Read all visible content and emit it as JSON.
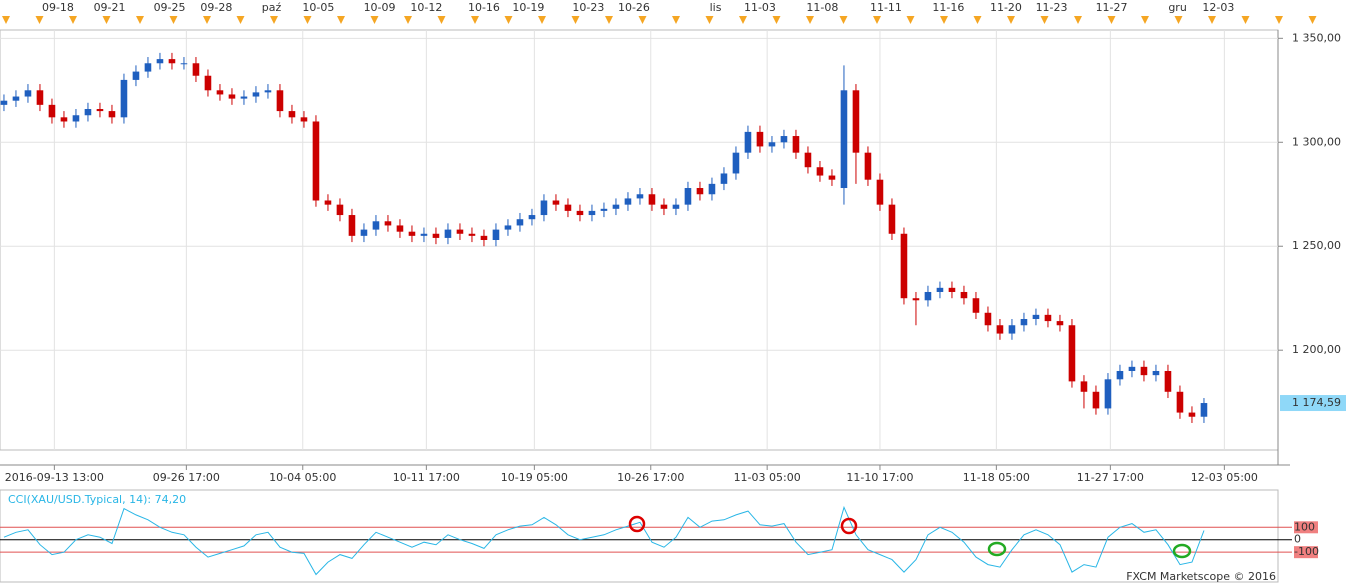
{
  "chart_data": [
    {
      "type": "candlestick",
      "up_color": "#1f5fbf",
      "down_color": "#cc0000",
      "open": [
        1318,
        1320,
        1322,
        1325,
        1318,
        1312,
        1310,
        1313,
        1316,
        1315,
        1312,
        1330,
        1334,
        1338,
        1340,
        1338,
        1338,
        1332,
        1325,
        1323,
        1321,
        1322,
        1324,
        1325,
        1315,
        1312,
        1310,
        1272,
        1270,
        1265,
        1255,
        1258,
        1262,
        1260,
        1257,
        1255,
        1256,
        1254,
        1258,
        1256,
        1255,
        1253,
        1258,
        1260,
        1263,
        1265,
        1272,
        1270,
        1267,
        1265,
        1267,
        1268,
        1270,
        1273,
        1275,
        1270,
        1268,
        1270,
        1278,
        1275,
        1280,
        1285,
        1295,
        1305,
        1298,
        1300,
        1303,
        1295,
        1288,
        1284,
        1278,
        1325,
        1295,
        1282,
        1270,
        1256,
        1225,
        1224,
        1228,
        1230,
        1228,
        1225,
        1218,
        1212,
        1208,
        1212,
        1215,
        1217,
        1214,
        1212,
        1185,
        1180,
        1172,
        1186,
        1190,
        1192,
        1188,
        1190,
        1180,
        1170,
        1168
      ],
      "high": [
        1323,
        1325,
        1328,
        1328,
        1321,
        1315,
        1316,
        1319,
        1319,
        1318,
        1333,
        1337,
        1341,
        1343,
        1343,
        1341,
        1341,
        1335,
        1328,
        1326,
        1325,
        1327,
        1328,
        1328,
        1318,
        1315,
        1313,
        1275,
        1273,
        1268,
        1261,
        1265,
        1265,
        1263,
        1260,
        1259,
        1259,
        1261,
        1261,
        1259,
        1258,
        1261,
        1263,
        1266,
        1268,
        1275,
        1275,
        1273,
        1270,
        1270,
        1271,
        1273,
        1276,
        1278,
        1278,
        1273,
        1273,
        1281,
        1281,
        1283,
        1288,
        1298,
        1308,
        1308,
        1303,
        1306,
        1306,
        1298,
        1291,
        1287,
        1337,
        1328,
        1298,
        1285,
        1273,
        1259,
        1228,
        1231,
        1233,
        1233,
        1231,
        1228,
        1221,
        1215,
        1215,
        1218,
        1220,
        1220,
        1217,
        1215,
        1188,
        1183,
        1189,
        1193,
        1195,
        1195,
        1193,
        1193,
        1183,
        1173,
        1177
      ],
      "low": [
        1315,
        1317,
        1319,
        1315,
        1309,
        1307,
        1307,
        1310,
        1312,
        1309,
        1309,
        1327,
        1331,
        1335,
        1335,
        1335,
        1329,
        1322,
        1320,
        1318,
        1318,
        1319,
        1321,
        1312,
        1309,
        1307,
        1269,
        1267,
        1262,
        1252,
        1252,
        1255,
        1257,
        1254,
        1252,
        1252,
        1251,
        1251,
        1253,
        1252,
        1250,
        1250,
        1255,
        1257,
        1260,
        1262,
        1267,
        1264,
        1262,
        1262,
        1264,
        1265,
        1267,
        1270,
        1267,
        1265,
        1265,
        1267,
        1272,
        1272,
        1277,
        1282,
        1292,
        1295,
        1295,
        1297,
        1292,
        1285,
        1281,
        1279,
        1270,
        1280,
        1279,
        1267,
        1253,
        1222,
        1212,
        1221,
        1225,
        1225,
        1222,
        1215,
        1209,
        1205,
        1205,
        1209,
        1212,
        1211,
        1209,
        1182,
        1172,
        1169,
        1169,
        1183,
        1187,
        1185,
        1185,
        1177,
        1167,
        1165,
        1165
      ],
      "close": [
        1320,
        1322,
        1325,
        1318,
        1312,
        1310,
        1313,
        1316,
        1315,
        1312,
        1330,
        1334,
        1338,
        1340,
        1338,
        1338,
        1332,
        1325,
        1323,
        1321,
        1322,
        1324,
        1325,
        1315,
        1312,
        1310,
        1272,
        1270,
        1265,
        1255,
        1258,
        1262,
        1260,
        1257,
        1255,
        1256,
        1254,
        1258,
        1256,
        1255,
        1253,
        1258,
        1260,
        1263,
        1265,
        1272,
        1270,
        1267,
        1265,
        1267,
        1268,
        1270,
        1273,
        1275,
        1270,
        1268,
        1270,
        1278,
        1275,
        1280,
        1285,
        1295,
        1305,
        1298,
        1300,
        1303,
        1295,
        1288,
        1284,
        1282,
        1325,
        1295,
        1282,
        1270,
        1256,
        1225,
        1224,
        1228,
        1230,
        1228,
        1225,
        1218,
        1212,
        1208,
        1212,
        1215,
        1217,
        1214,
        1212,
        1185,
        1180,
        1172,
        1186,
        1190,
        1192,
        1188,
        1190,
        1180,
        1170,
        1168,
        1174.59
      ],
      "xlim": [
        -0.33,
        106.17
      ],
      "ylim": [
        1152,
        1354
      ],
      "yticks": [
        {
          "value": 1350,
          "label": "1 350,00"
        },
        {
          "value": 1300,
          "label": "1 300,00"
        },
        {
          "value": 1250,
          "label": "1 250,00"
        },
        {
          "value": 1200,
          "label": "1 200,00"
        }
      ],
      "last_price": {
        "value": 1174.59,
        "label": "1 174,59"
      },
      "xticks": [
        {
          "value": 4.2,
          "label": "2016-09-13 13:00"
        },
        {
          "value": 15.2,
          "label": "09-26 17:00"
        },
        {
          "value": 24.9,
          "label": "10-04 05:00"
        },
        {
          "value": 35.2,
          "label": "10-11 17:00"
        },
        {
          "value": 44.2,
          "label": "10-19 05:00"
        },
        {
          "value": 53.9,
          "label": "10-26 17:00"
        },
        {
          "value": 63.6,
          "label": "11-03 05:00"
        },
        {
          "value": 73,
          "label": "11-10 17:00"
        },
        {
          "value": 82.7,
          "label": "11-18 05:00"
        },
        {
          "value": 92.2,
          "label": "11-27 17:00"
        },
        {
          "value": 101.7,
          "label": "12-03 05:00"
        }
      ],
      "top_dates": [
        {
          "value": 4.5,
          "label": "09-18"
        },
        {
          "value": 8.8,
          "label": "09-21"
        },
        {
          "value": 13.8,
          "label": "09-25"
        },
        {
          "value": 17.7,
          "label": "09-28"
        },
        {
          "value": 22.3,
          "label": "paź"
        },
        {
          "value": 26.2,
          "label": "10-05"
        },
        {
          "value": 31.3,
          "label": "10-09"
        },
        {
          "value": 35.2,
          "label": "10-12"
        },
        {
          "value": 40,
          "label": "10-16"
        },
        {
          "value": 43.7,
          "label": "10-19"
        },
        {
          "value": 48.7,
          "label": "10-23"
        },
        {
          "value": 52.5,
          "label": "10-26"
        },
        {
          "value": 59.3,
          "label": "lis"
        },
        {
          "value": 63,
          "label": "11-03"
        },
        {
          "value": 68.2,
          "label": "11-08"
        },
        {
          "value": 73.5,
          "label": "11-11"
        },
        {
          "value": 78.7,
          "label": "11-16"
        },
        {
          "value": 83.5,
          "label": "11-20"
        },
        {
          "value": 87.3,
          "label": "11-23"
        },
        {
          "value": 92.3,
          "label": "11-27"
        },
        {
          "value": 97.8,
          "label": "gru"
        },
        {
          "value": 101.2,
          "label": "12-03"
        }
      ],
      "grid": true
    },
    {
      "type": "line",
      "title": "CCI(XAU/USD.Typical, 14): 74,20",
      "color": "#29b6e6",
      "values": [
        20,
        60,
        80,
        -40,
        -120,
        -100,
        0,
        40,
        20,
        -30,
        250,
        200,
        160,
        100,
        60,
        40,
        -60,
        -140,
        -110,
        -80,
        -50,
        40,
        60,
        -60,
        -100,
        -110,
        -280,
        -180,
        -120,
        -150,
        -40,
        60,
        20,
        -20,
        -60,
        -20,
        -40,
        40,
        0,
        -30,
        -70,
        40,
        80,
        110,
        120,
        180,
        120,
        40,
        0,
        20,
        40,
        80,
        110,
        140,
        -20,
        -60,
        20,
        180,
        100,
        150,
        160,
        200,
        230,
        120,
        110,
        130,
        -20,
        -120,
        -100,
        -80,
        260,
        40,
        -80,
        -120,
        -160,
        -260,
        -160,
        40,
        100,
        60,
        -20,
        -140,
        -200,
        -220,
        -80,
        40,
        80,
        40,
        -40,
        -260,
        -200,
        -220,
        20,
        100,
        130,
        60,
        80,
        -40,
        -200,
        -180,
        74.2
      ],
      "xlim": [
        -0.33,
        106.17
      ],
      "ylim": [
        -340,
        400
      ],
      "yticks": [
        100,
        0,
        -100
      ]
    }
  ],
  "footer": "FXCM Marketscope © 2016"
}
